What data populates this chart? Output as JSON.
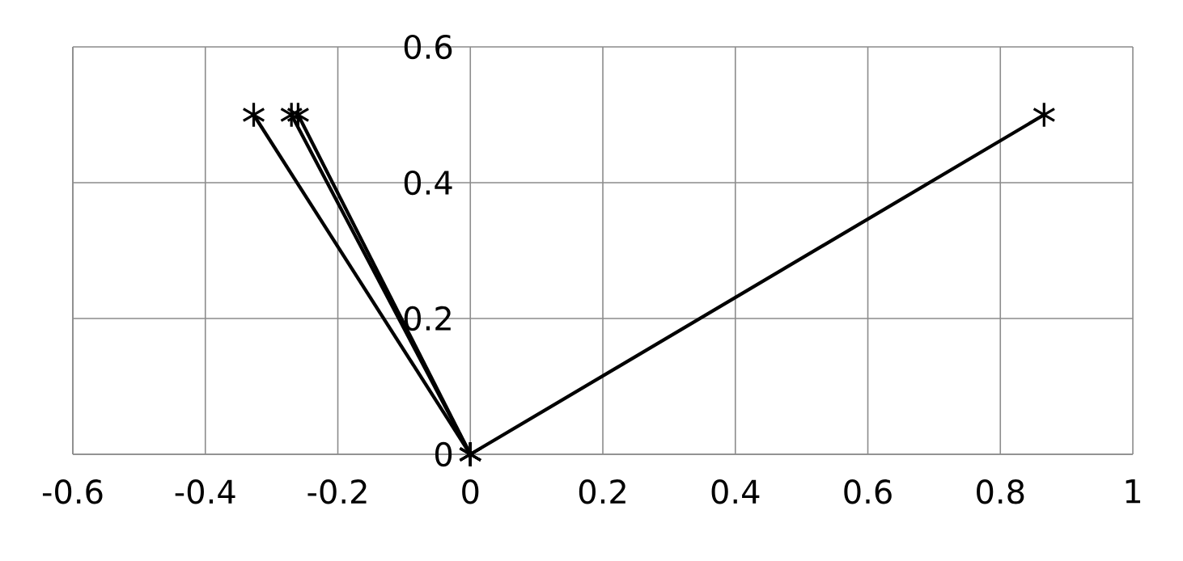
{
  "chart_data": {
    "type": "line",
    "xlim": [
      -0.6,
      1
    ],
    "ylim": [
      0,
      0.6
    ],
    "xticks": [
      -0.6,
      -0.4,
      -0.2,
      0,
      0.2,
      0.4,
      0.6,
      0.8,
      1
    ],
    "yticks": [
      0,
      0.2,
      0.4,
      0.6
    ],
    "grid": true,
    "marker": "cross",
    "line_style": "solid",
    "series": [
      {
        "color": "#000000",
        "x": [
          0,
          -0.327
        ],
        "values": [
          0,
          0.5
        ]
      },
      {
        "color": "#000000",
        "x": [
          0,
          -0.27
        ],
        "values": [
          0,
          0.5
        ]
      },
      {
        "color": "#000000",
        "x": [
          0,
          -0.26
        ],
        "values": [
          0,
          0.5
        ]
      },
      {
        "color": "#000000",
        "x": [
          0,
          0.866
        ],
        "values": [
          0,
          0.5
        ]
      }
    ]
  }
}
